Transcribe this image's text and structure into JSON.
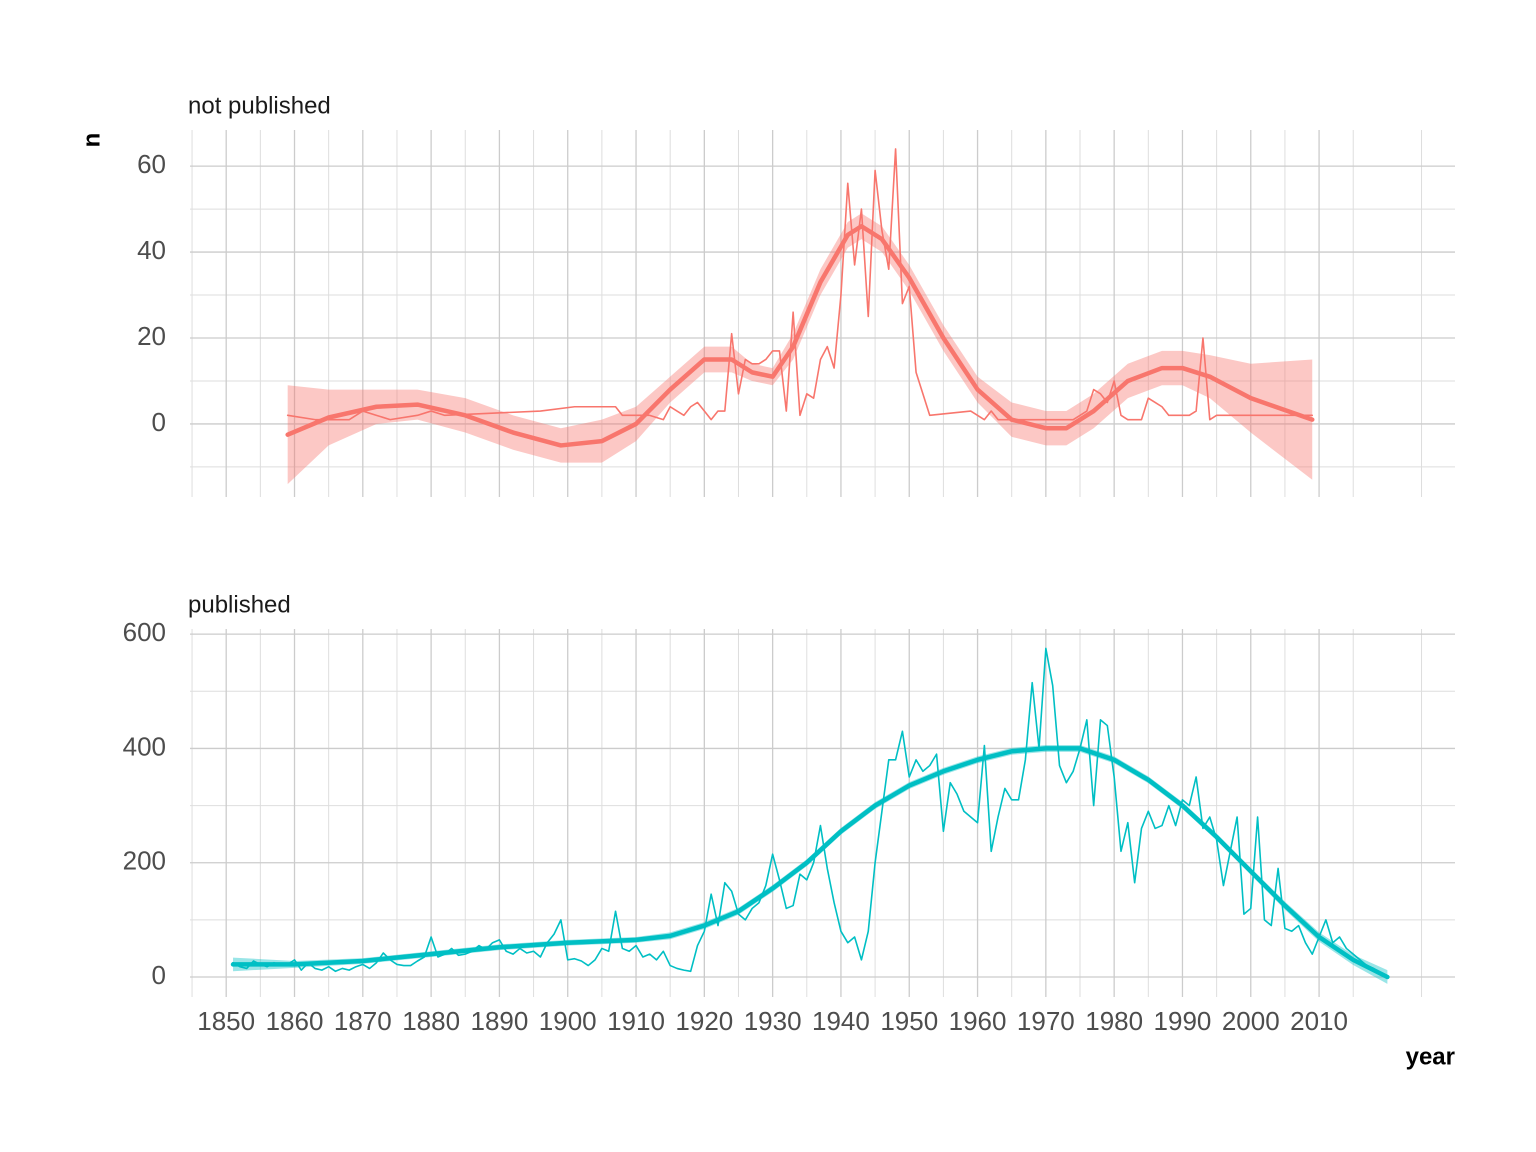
{
  "chart_data": [
    {
      "type": "line",
      "title": "not published",
      "ylabel": "n",
      "xlim": [
        1844.7,
        2029.9
      ],
      "xticks": [
        1850,
        1860,
        1870,
        1880,
        1890,
        1900,
        1910,
        1920,
        1930,
        1940,
        1950,
        1960,
        1970,
        1980,
        1990,
        2000,
        2010
      ],
      "xtick_labels": false,
      "ylim": [
        -17,
        68.4
      ],
      "yticks": [
        0,
        20,
        40,
        60
      ],
      "grid": true,
      "series": [
        {
          "color": "#F8766D",
          "x": [
            1859,
            1863,
            1868,
            1870,
            1872,
            1874,
            1878,
            1880,
            1882,
            1896,
            1901,
            1907,
            1908,
            1912,
            1914,
            1915,
            1916,
            1917,
            1918,
            1919,
            1920,
            1921,
            1922,
            1923,
            1924,
            1925,
            1926,
            1927,
            1928,
            1929,
            1930,
            1931,
            1932,
            1933,
            1934,
            1935,
            1936,
            1937,
            1938,
            1939,
            1940,
            1941,
            1942,
            1943,
            1944,
            1945,
            1946,
            1947,
            1948,
            1949,
            1950,
            1951,
            1952,
            1953,
            1959,
            1961,
            1962,
            1963,
            1968,
            1974,
            1976,
            1977,
            1978,
            1979,
            1980,
            1981,
            1982,
            1984,
            1985,
            1986,
            1987,
            1988,
            1991,
            1992,
            1993,
            1994,
            1995,
            2009
          ],
          "values": [
            2,
            1,
            1,
            3,
            2,
            1,
            2,
            3,
            2,
            3,
            4,
            4,
            2,
            2,
            1,
            4,
            3,
            2,
            4,
            5,
            3,
            1,
            3,
            3,
            21,
            7,
            15,
            14,
            14,
            15,
            17,
            17,
            3,
            26,
            2,
            7,
            6,
            15,
            18,
            13,
            30,
            56,
            37,
            50,
            25,
            59,
            45,
            36,
            64,
            28,
            32,
            12,
            7,
            2,
            3,
            1,
            3,
            1,
            1,
            1,
            3,
            8,
            7,
            5,
            10,
            2,
            1,
            1,
            6,
            5,
            4,
            2,
            2,
            3,
            20,
            1,
            2,
            2
          ]
        },
        {
          "color": "#F8766D",
          "smooth": true,
          "x": [
            1859,
            1865,
            1872,
            1878,
            1885,
            1892,
            1899,
            1905,
            1910,
            1915,
            1920,
            1924,
            1927,
            1930,
            1933,
            1937,
            1941,
            1943,
            1946,
            1950,
            1955,
            1960,
            1965,
            1970,
            1973,
            1977,
            1982,
            1987,
            1990,
            1994,
            2000,
            2009
          ],
          "values": [
            -2.5,
            1.5,
            4,
            4.5,
            2,
            -2,
            -5,
            -4,
            0,
            8,
            15,
            15,
            12,
            11,
            18,
            33,
            44,
            46,
            43,
            34,
            20,
            8,
            1,
            -1,
            -1,
            3,
            10,
            13,
            13,
            11,
            6,
            1
          ],
          "band_lower": [
            -14,
            -5,
            0,
            1,
            -2,
            -6,
            -9,
            -9,
            -4,
            5,
            12,
            12,
            10,
            9,
            15,
            30,
            41,
            43,
            40,
            31,
            17,
            5,
            -3,
            -5,
            -5,
            -1,
            6,
            9,
            9,
            6,
            -2,
            -13
          ],
          "band_upper": [
            9,
            8,
            8,
            8,
            6,
            2,
            -1,
            1,
            4,
            11,
            18,
            18,
            14,
            13,
            21,
            36,
            47,
            49,
            46,
            37,
            23,
            11,
            5,
            3,
            3,
            7,
            14,
            17,
            17,
            16,
            14,
            15
          ]
        }
      ]
    },
    {
      "type": "line",
      "title": "published",
      "xlabel": "year",
      "xlim": [
        1844.7,
        2029.9
      ],
      "xticks": [
        1850,
        1860,
        1870,
        1880,
        1890,
        1900,
        1910,
        1920,
        1930,
        1940,
        1950,
        1960,
        1970,
        1980,
        1990,
        2000,
        2010
      ],
      "xtick_labels": true,
      "ylim": [
        -35,
        609
      ],
      "yticks": [
        0,
        200,
        400,
        600
      ],
      "grid": true,
      "series": [
        {
          "color": "#00BFC4",
          "x": [
            1851,
            1852,
            1853,
            1854,
            1855,
            1856,
            1857,
            1858,
            1859,
            1860,
            1861,
            1862,
            1863,
            1864,
            1865,
            1866,
            1867,
            1868,
            1869,
            1870,
            1871,
            1872,
            1873,
            1874,
            1875,
            1876,
            1877,
            1878,
            1879,
            1880,
            1881,
            1882,
            1883,
            1884,
            1885,
            1886,
            1887,
            1888,
            1889,
            1890,
            1891,
            1892,
            1893,
            1894,
            1895,
            1896,
            1897,
            1898,
            1899,
            1900,
            1901,
            1902,
            1903,
            1904,
            1905,
            1906,
            1907,
            1908,
            1909,
            1910,
            1911,
            1912,
            1913,
            1914,
            1915,
            1916,
            1917,
            1918,
            1919,
            1920,
            1921,
            1922,
            1923,
            1924,
            1925,
            1926,
            1927,
            1928,
            1929,
            1930,
            1931,
            1932,
            1933,
            1934,
            1935,
            1936,
            1937,
            1938,
            1939,
            1940,
            1941,
            1942,
            1943,
            1944,
            1945,
            1946,
            1947,
            1948,
            1949,
            1950,
            1951,
            1952,
            1953,
            1954,
            1955,
            1956,
            1957,
            1958,
            1959,
            1960,
            1961,
            1962,
            1963,
            1964,
            1965,
            1966,
            1967,
            1968,
            1969,
            1970,
            1971,
            1972,
            1973,
            1974,
            1975,
            1976,
            1977,
            1978,
            1979,
            1980,
            1981,
            1982,
            1983,
            1984,
            1985,
            1986,
            1987,
            1988,
            1989,
            1990,
            1991,
            1992,
            1993,
            1994,
            1995,
            1996,
            1997,
            1998,
            1999,
            2000,
            2001,
            2002,
            2003,
            2004,
            2005,
            2006,
            2007,
            2008,
            2009,
            2010,
            2011,
            2012,
            2013,
            2014,
            2015,
            2016,
            2017,
            2018,
            2019,
            2020
          ],
          "values": [
            25,
            18,
            15,
            28,
            22,
            18,
            25,
            20,
            22,
            30,
            12,
            25,
            15,
            12,
            18,
            10,
            15,
            12,
            18,
            22,
            15,
            25,
            42,
            30,
            22,
            20,
            20,
            28,
            35,
            70,
            35,
            40,
            50,
            38,
            40,
            45,
            55,
            48,
            60,
            65,
            45,
            40,
            50,
            42,
            45,
            35,
            60,
            75,
            100,
            30,
            32,
            28,
            20,
            30,
            50,
            45,
            115,
            50,
            45,
            55,
            35,
            40,
            30,
            45,
            20,
            15,
            12,
            10,
            55,
            80,
            145,
            90,
            165,
            150,
            110,
            100,
            120,
            130,
            160,
            215,
            170,
            120,
            125,
            180,
            170,
            200,
            265,
            190,
            130,
            80,
            60,
            70,
            30,
            80,
            200,
            290,
            380,
            380,
            430,
            350,
            380,
            360,
            370,
            390,
            255,
            340,
            320,
            290,
            280,
            270,
            405,
            220,
            280,
            330,
            310,
            310,
            380,
            515,
            400,
            575,
            510,
            370,
            340,
            360,
            400,
            450,
            300,
            450,
            440,
            350,
            220,
            270,
            165,
            260,
            290,
            260,
            265,
            300,
            265,
            310,
            300,
            350,
            260,
            280,
            240,
            160,
            220,
            280,
            110,
            120,
            280,
            100,
            90,
            190,
            85,
            80,
            90,
            60,
            40,
            70,
            100,
            60,
            70,
            50,
            40,
            30,
            20,
            15,
            5,
            2
          ]
        },
        {
          "color": "#00BFC4",
          "smooth": true,
          "x": [
            1851,
            1860,
            1870,
            1880,
            1890,
            1900,
            1910,
            1915,
            1920,
            1925,
            1930,
            1935,
            1940,
            1945,
            1950,
            1955,
            1960,
            1965,
            1970,
            1975,
            1980,
            1985,
            1990,
            1995,
            2000,
            2005,
            2010,
            2015,
            2020
          ],
          "values": [
            22,
            22,
            28,
            40,
            52,
            60,
            65,
            72,
            90,
            115,
            155,
            200,
            255,
            300,
            335,
            360,
            380,
            395,
            400,
            400,
            380,
            345,
            300,
            245,
            185,
            125,
            70,
            30,
            0
          ],
          "band_lower": [
            10,
            16,
            23,
            35,
            47,
            55,
            60,
            66,
            84,
            109,
            149,
            194,
            249,
            294,
            329,
            354,
            374,
            389,
            394,
            394,
            374,
            339,
            294,
            239,
            179,
            118,
            62,
            21,
            -12
          ],
          "band_upper": [
            34,
            28,
            33,
            45,
            57,
            65,
            70,
            78,
            96,
            121,
            161,
            206,
            261,
            306,
            341,
            366,
            386,
            401,
            406,
            406,
            386,
            351,
            306,
            251,
            191,
            132,
            78,
            39,
            12
          ]
        }
      ]
    }
  ]
}
